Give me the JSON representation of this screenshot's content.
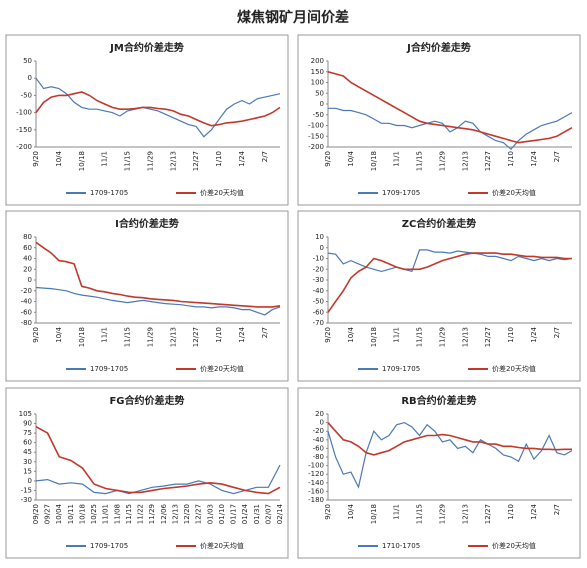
{
  "title": "煤焦钢矿月间价差",
  "chart_data": [
    {
      "type": "line",
      "title": "JM合约价差走势",
      "categories": [
        "9/20",
        null,
        null,
        "10/4",
        null,
        null,
        "10/18",
        null,
        null,
        "11/1",
        null,
        null,
        "11/15",
        null,
        null,
        "11/29",
        null,
        null,
        "12/13",
        null,
        null,
        "12/27",
        null,
        null,
        "1/10",
        null,
        null,
        "1/24",
        null,
        null,
        "2/7",
        null,
        null
      ],
      "series": [
        {
          "name": "1709-1705",
          "color": "#4a78b8",
          "values": [
            0,
            -30,
            -25,
            -30,
            -45,
            -70,
            -85,
            -90,
            -90,
            -95,
            -100,
            -110,
            -95,
            -90,
            -85,
            -90,
            -95,
            -105,
            -115,
            -125,
            -135,
            -140,
            -170,
            -150,
            -120,
            -90,
            -75,
            -65,
            -75,
            -60,
            -55,
            -50,
            -45
          ]
        },
        {
          "name": "价差20天均值",
          "color": "#c0392b",
          "values": [
            -100,
            -70,
            -55,
            -50,
            -50,
            -45,
            -40,
            -50,
            -65,
            -75,
            -85,
            -90,
            -90,
            -88,
            -85,
            -85,
            -88,
            -90,
            -95,
            -105,
            -110,
            -120,
            -130,
            -138,
            -135,
            -130,
            -128,
            -125,
            -120,
            -115,
            -110,
            -100,
            -85
          ]
        }
      ],
      "ylim": [
        -200,
        50
      ],
      "yticks": [
        50,
        0,
        -50,
        -100,
        -150,
        -200
      ]
    },
    {
      "type": "line",
      "title": "J合约价差走势",
      "categories": [
        "9/20",
        null,
        null,
        "10/4",
        null,
        null,
        "10/18",
        null,
        null,
        "11/1",
        null,
        null,
        "11/15",
        null,
        null,
        "11/29",
        null,
        null,
        "12/13",
        null,
        null,
        "12/27",
        null,
        null,
        "1/10",
        null,
        null,
        "1/24",
        null,
        null,
        "2/7",
        null,
        null
      ],
      "series": [
        {
          "name": "1709-1705",
          "color": "#4a78b8",
          "values": [
            -20,
            -20,
            -30,
            -30,
            -40,
            -50,
            -70,
            -90,
            -90,
            -100,
            -100,
            -110,
            -100,
            -90,
            -80,
            -90,
            -130,
            -110,
            -80,
            -90,
            -130,
            -150,
            -170,
            -180,
            -210,
            -170,
            -140,
            -120,
            -100,
            -90,
            -80,
            -60,
            -40
          ]
        },
        {
          "name": "价差20天均值",
          "color": "#c0392b",
          "values": [
            150,
            140,
            130,
            100,
            80,
            60,
            40,
            20,
            0,
            -20,
            -40,
            -60,
            -80,
            -90,
            -95,
            -100,
            -105,
            -110,
            -115,
            -120,
            -130,
            -140,
            -150,
            -160,
            -170,
            -180,
            -175,
            -170,
            -165,
            -160,
            -150,
            -130,
            -110
          ]
        }
      ],
      "ylim": [
        -200,
        200
      ],
      "yticks": [
        200,
        150,
        100,
        50,
        0,
        -50,
        -100,
        -150,
        -200
      ]
    },
    {
      "type": "line",
      "title": "I合约价差走势",
      "categories": [
        "9/20",
        null,
        null,
        "10/4",
        null,
        null,
        "10/18",
        null,
        null,
        "11/1",
        null,
        null,
        "11/15",
        null,
        null,
        "11/29",
        null,
        null,
        "12/13",
        null,
        null,
        "12/27",
        null,
        null,
        "1/10",
        null,
        null,
        "1/24",
        null,
        null,
        "2/7",
        null,
        null
      ],
      "series": [
        {
          "name": "1709-1705",
          "color": "#4a78b8",
          "values": [
            -14,
            -15,
            -16,
            -18,
            -20,
            -25,
            -28,
            -30,
            -32,
            -35,
            -38,
            -40,
            -42,
            -40,
            -38,
            -40,
            -42,
            -44,
            -45,
            -46,
            -48,
            -50,
            -50,
            -52,
            -50,
            -50,
            -52,
            -55,
            -55,
            -60,
            -65,
            -55,
            -50
          ]
        },
        {
          "name": "价差20天均值",
          "color": "#c0392b",
          "values": [
            70,
            60,
            50,
            36,
            34,
            30,
            -12,
            -15,
            -20,
            -22,
            -25,
            -27,
            -30,
            -32,
            -33,
            -35,
            -36,
            -37,
            -38,
            -40,
            -41,
            -42,
            -43,
            -44,
            -45,
            -46,
            -47,
            -48,
            -49,
            -50,
            -50,
            -50,
            -48
          ]
        }
      ],
      "ylim": [
        -80,
        80
      ],
      "yticks": [
        80,
        60,
        40,
        20,
        0,
        -20,
        -40,
        -60,
        -80
      ]
    },
    {
      "type": "line",
      "title": "ZC合约价差走势",
      "categories": [
        "9/20",
        null,
        null,
        "10/4",
        null,
        null,
        "10/18",
        null,
        null,
        "11/1",
        null,
        null,
        "11/15",
        null,
        null,
        "11/29",
        null,
        null,
        "12/13",
        null,
        null,
        "12/27",
        null,
        null,
        "1/10",
        null,
        null,
        "1/24",
        null,
        null,
        "2/7",
        null,
        null
      ],
      "series": [
        {
          "name": "1709-1705",
          "color": "#4a78b8",
          "values": [
            -5,
            -6,
            -15,
            -12,
            -15,
            -18,
            -20,
            -22,
            -20,
            -18,
            -20,
            -22,
            -2,
            -2,
            -4,
            -4,
            -5,
            -3,
            -4,
            -5,
            -6,
            -8,
            -8,
            -10,
            -12,
            -8,
            -10,
            -12,
            -10,
            -12,
            -10,
            -11,
            -10
          ]
        },
        {
          "name": "价差20天均值",
          "color": "#c0392b",
          "values": [
            -60,
            -50,
            -40,
            -28,
            -22,
            -18,
            -10,
            -12,
            -15,
            -18,
            -20,
            -20,
            -20,
            -18,
            -15,
            -12,
            -10,
            -8,
            -6,
            -5,
            -5,
            -5,
            -5,
            -6,
            -6,
            -7,
            -8,
            -8,
            -9,
            -9,
            -9,
            -10,
            -10
          ]
        }
      ],
      "ylim": [
        -70,
        10
      ],
      "yticks": [
        10,
        0,
        -10,
        -20,
        -30,
        -40,
        -50,
        -60,
        -70
      ]
    },
    {
      "type": "line",
      "title": "FG合约价差走势",
      "categories": [
        "09/20",
        "09/27",
        "10/04",
        "10/11",
        "10/18",
        "10/25",
        "11/01",
        "11/08",
        "11/15",
        "11/22",
        "11/29",
        "12/06",
        "12/13",
        "12/20",
        "12/27",
        "01/03",
        "01/10",
        "01/17",
        "01/24",
        "01/31",
        "02/07",
        "02/14"
      ],
      "series": [
        {
          "name": "1709-1705",
          "color": "#4a78b8",
          "values": [
            0,
            2,
            -5,
            -3,
            -5,
            -18,
            -20,
            -15,
            -20,
            -15,
            -10,
            -8,
            -5,
            -5,
            0,
            -5,
            -15,
            -20,
            -15,
            -10,
            -10,
            25
          ]
        },
        {
          "name": "价差20天均值",
          "color": "#c0392b",
          "values": [
            85,
            75,
            38,
            32,
            20,
            -5,
            -12,
            -15,
            -18,
            -18,
            -15,
            -12,
            -10,
            -8,
            -5,
            -3,
            -5,
            -10,
            -15,
            -18,
            -20,
            -10
          ]
        }
      ],
      "ylim": [
        -30,
        105
      ],
      "yticks": [
        105,
        90,
        75,
        60,
        45,
        30,
        15,
        0,
        -15,
        -30
      ]
    },
    {
      "type": "line",
      "title": "RB合约价差走势",
      "categories": [
        "9/20",
        null,
        null,
        "10/4",
        null,
        null,
        "10/18",
        null,
        null,
        "11/1",
        null,
        null,
        "11/15",
        null,
        null,
        "11/29",
        null,
        null,
        "12/13",
        null,
        null,
        "12/27",
        null,
        null,
        "1/10",
        null,
        null,
        "1/24",
        null,
        null,
        "2/7",
        null,
        null
      ],
      "series": [
        {
          "name": "1710-1705",
          "color": "#4a78b8",
          "values": [
            -20,
            -80,
            -120,
            -115,
            -150,
            -70,
            -20,
            -40,
            -30,
            -5,
            0,
            -10,
            -30,
            -5,
            -20,
            -45,
            -40,
            -60,
            -55,
            -70,
            -40,
            -50,
            -60,
            -75,
            -80,
            -90,
            -50,
            -85,
            -65,
            -30,
            -70,
            -75,
            -65
          ]
        },
        {
          "name": "价差20天均值",
          "color": "#c0392b",
          "values": [
            0,
            -20,
            -40,
            -45,
            -55,
            -70,
            -75,
            -70,
            -65,
            -55,
            -45,
            -40,
            -35,
            -30,
            -30,
            -28,
            -30,
            -35,
            -40,
            -45,
            -45,
            -50,
            -50,
            -55,
            -55,
            -58,
            -60,
            -60,
            -62,
            -62,
            -63,
            -62,
            -62
          ]
        }
      ],
      "ylim": [
        -180,
        20
      ],
      "yticks": [
        20,
        0,
        -20,
        -40,
        -60,
        -80,
        -100,
        -120,
        -140,
        -160,
        -180
      ]
    }
  ]
}
